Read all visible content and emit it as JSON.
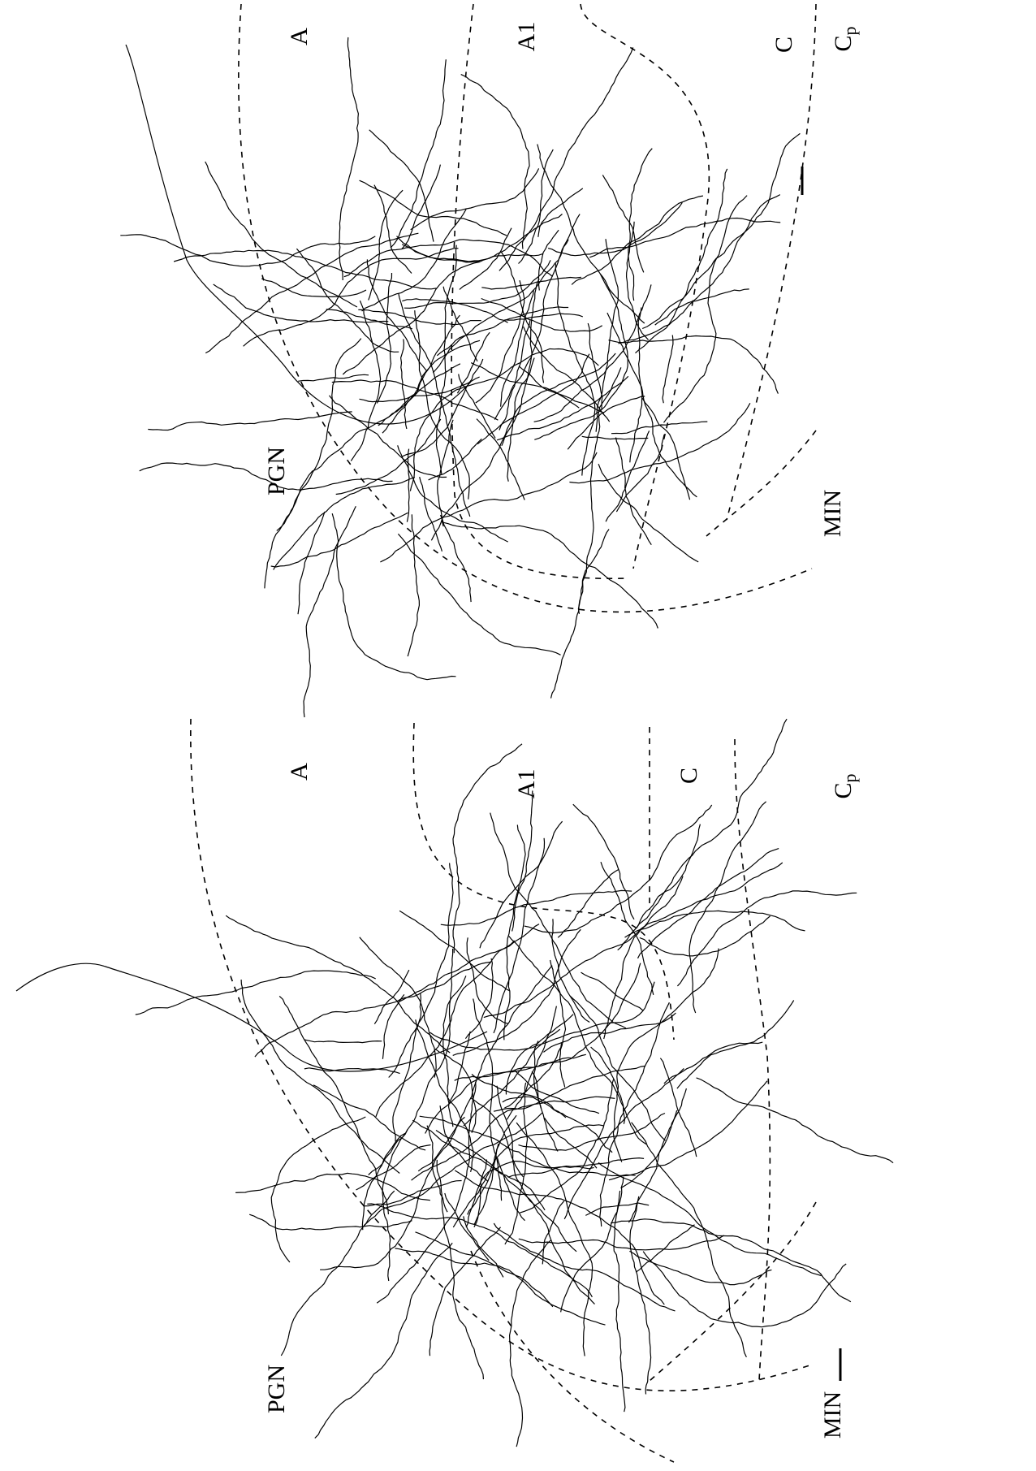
{
  "panels": [
    {
      "labels": [
        "A",
        "A1",
        "C"
      ],
      "cp": {
        "base": "C",
        "sub": "p"
      },
      "pgn": "PGN",
      "min": "MIN"
    },
    {
      "labels": [
        "A",
        "A1",
        "C"
      ],
      "cp": {
        "base": "C",
        "sub": "p"
      },
      "pgn": "PGN",
      "min": "MIN"
    }
  ]
}
